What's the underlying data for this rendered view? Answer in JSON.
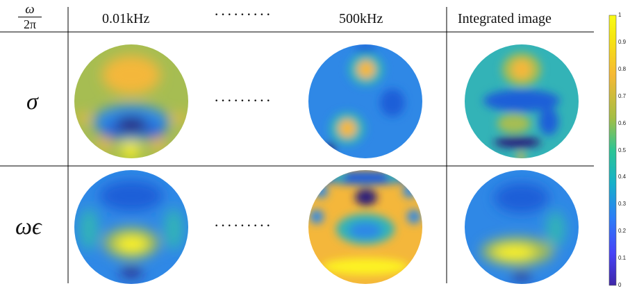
{
  "header": {
    "omega": "ω",
    "two_pi": "2π",
    "col1": "0.01kHz",
    "dots": "·········",
    "col3": "500kHz",
    "col4": "Integrated image"
  },
  "rows": {
    "sigma": {
      "label": "σ",
      "dots": "·········"
    },
    "omega_eps": {
      "label": "ωϵ",
      "dots": "·········"
    }
  },
  "colorbar": {
    "min": 0,
    "max": 1,
    "ticks": [
      "1",
      "0.9",
      "0.8",
      "0.7",
      "0.6",
      "0.5",
      "0.4",
      "0.3",
      "0.2",
      "0.1",
      "0"
    ],
    "colormap": [
      "#3e26a8",
      "#4743f8",
      "#2c7ef7",
      "#16b1c9",
      "#2cc594",
      "#a4be44",
      "#f6b935",
      "#f6e70f",
      "#f9fb15"
    ]
  },
  "colors": {
    "lowest": "#2a1e7a",
    "low": "#1f5fd8",
    "mid_low": "#2f88e6",
    "mid": "#33b3b7",
    "mid_high": "#a6bd52",
    "high": "#f4b73b",
    "highest": "#fdf321"
  }
}
